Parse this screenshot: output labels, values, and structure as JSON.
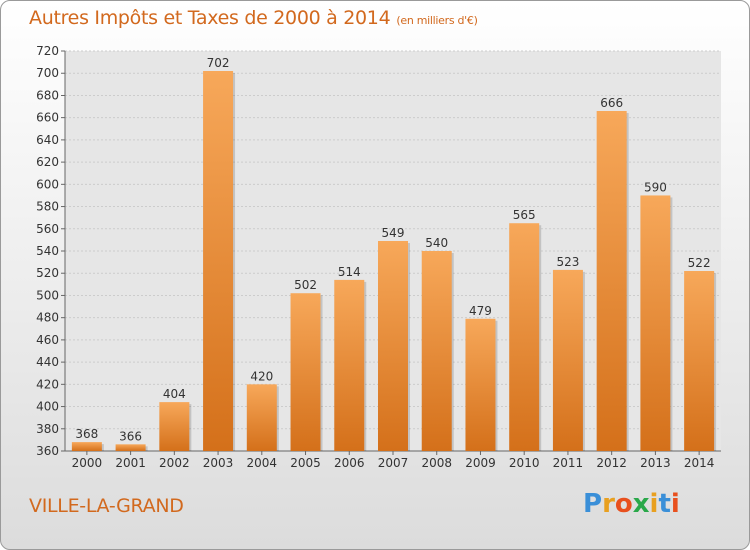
{
  "header": {
    "title": "Autres Impôts et Taxes de 2000 à 2014",
    "unit": "(en milliers d'€)"
  },
  "footer": {
    "city": "VILLE-LA-GRAND",
    "logo_letters": [
      "P",
      "r",
      "o",
      "x",
      "i",
      "t",
      "i"
    ],
    "logo_colors": [
      "#3a8fd8",
      "#e8a020",
      "#e8501e",
      "#2aa84a",
      "#e8a020",
      "#3a8fd8",
      "#e8501e"
    ]
  },
  "colors": {
    "title": "#d2691e",
    "bar_top": "#f7a85a",
    "bar_bottom": "#d4701a",
    "grid": "#cccccc"
  },
  "chart_data": {
    "type": "bar",
    "categories": [
      "2000",
      "2001",
      "2002",
      "2003",
      "2004",
      "2005",
      "2006",
      "2007",
      "2008",
      "2009",
      "2010",
      "2011",
      "2012",
      "2013",
      "2014"
    ],
    "values": [
      368,
      366,
      404,
      702,
      420,
      502,
      514,
      549,
      540,
      479,
      565,
      523,
      666,
      590,
      522
    ],
    "ylim": [
      360,
      720
    ],
    "yticks": [
      360,
      380,
      400,
      420,
      440,
      460,
      480,
      500,
      520,
      540,
      560,
      580,
      600,
      620,
      640,
      660,
      680,
      700,
      720
    ],
    "grid": true
  }
}
